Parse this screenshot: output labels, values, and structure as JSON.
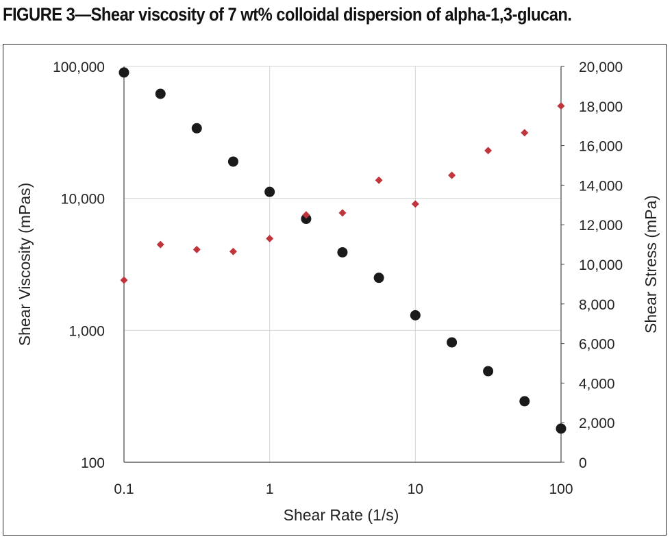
{
  "figure": {
    "title": "FIGURE 3—Shear viscosity of 7 wt% colloidal dispersion of alpha-1,3-glucan."
  },
  "chart_data": {
    "type": "scatter",
    "title": "FIGURE 3—Shear viscosity of 7 wt% colloidal dispersion of alpha-1,3-glucan.",
    "xlabel": "Shear Rate (1/s)",
    "ylabel": "Shear Viscosity (mPas)",
    "y2label": "Shear Stress (mPa)",
    "x_scale": "log",
    "y_scale": "log",
    "y2_scale": "linear",
    "xlim": [
      0.1,
      100
    ],
    "ylim": [
      100,
      100000
    ],
    "y2lim": [
      0,
      20000
    ],
    "x_ticks": [
      {
        "value": 0.1,
        "label": "0.1"
      },
      {
        "value": 1,
        "label": "1"
      },
      {
        "value": 10,
        "label": "10"
      },
      {
        "value": 100,
        "label": "100"
      }
    ],
    "y_ticks": [
      {
        "value": 100,
        "label": "100"
      },
      {
        "value": 1000,
        "label": "1,000"
      },
      {
        "value": 10000,
        "label": "10,000"
      },
      {
        "value": 100000,
        "label": "100,000"
      }
    ],
    "y2_ticks": [
      {
        "value": 0,
        "label": "0"
      },
      {
        "value": 2000,
        "label": "2,000"
      },
      {
        "value": 4000,
        "label": "4,000"
      },
      {
        "value": 6000,
        "label": "6,000"
      },
      {
        "value": 8000,
        "label": "8,000"
      },
      {
        "value": 10000,
        "label": "10,000"
      },
      {
        "value": 12000,
        "label": "12,000"
      },
      {
        "value": 14000,
        "label": "14,000"
      },
      {
        "value": 16000,
        "label": "16,000"
      },
      {
        "value": 18000,
        "label": "18,000"
      },
      {
        "value": 20000,
        "label": "20,000"
      }
    ],
    "grid": true,
    "series": [
      {
        "axis": "left",
        "marker": "circle",
        "color": "#1a1a1a",
        "x": [
          0.1,
          0.178,
          0.316,
          0.562,
          1.0,
          1.78,
          3.16,
          5.62,
          10.0,
          17.8,
          31.6,
          56.2,
          100
        ],
        "y": [
          90000,
          62000,
          34000,
          19000,
          11200,
          7000,
          3900,
          2500,
          1300,
          810,
          490,
          290,
          180
        ]
      },
      {
        "axis": "right",
        "marker": "diamond",
        "color": "#c0343c",
        "x": [
          0.1,
          0.178,
          0.316,
          0.562,
          1.0,
          1.78,
          3.16,
          5.62,
          10.0,
          17.8,
          31.6,
          56.2,
          100
        ],
        "y": [
          9200,
          11000,
          10750,
          10650,
          11300,
          12500,
          12600,
          14250,
          13050,
          14500,
          15750,
          16650,
          18000
        ]
      }
    ]
  }
}
